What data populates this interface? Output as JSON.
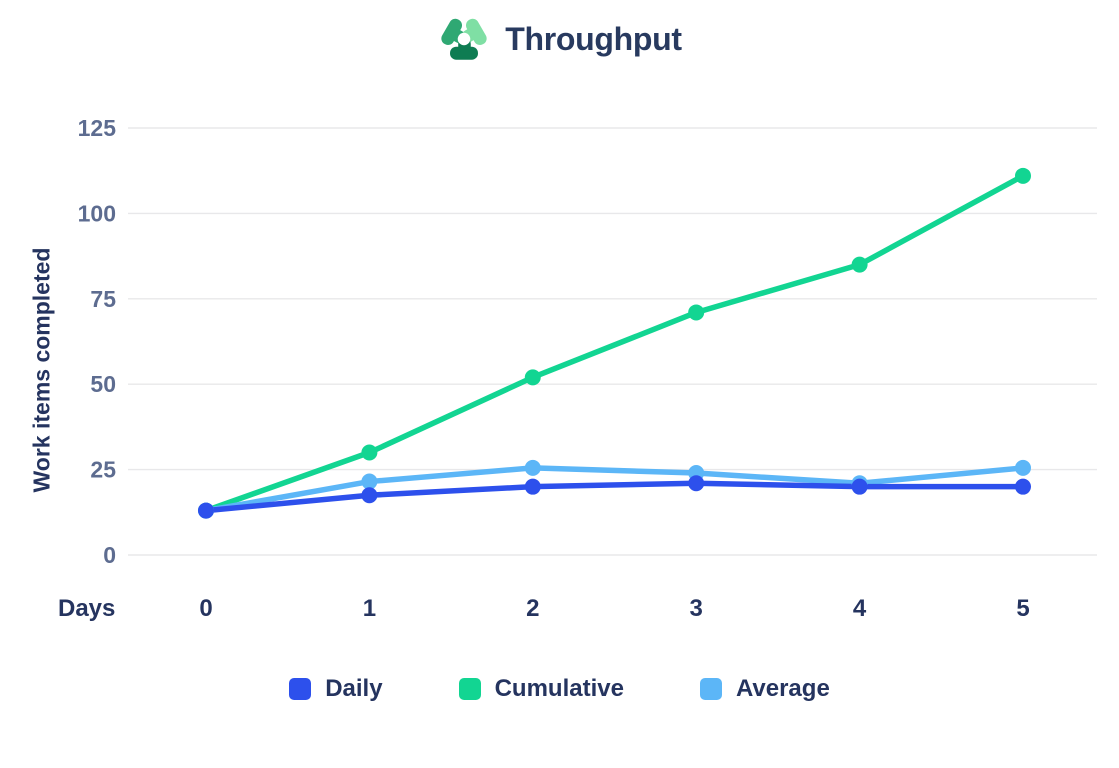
{
  "header": {
    "title": "Throughput",
    "logo": {
      "left_color": "#2fa873",
      "right_color": "#7fdfa4",
      "bottom_color": "#0e7c52"
    }
  },
  "chart_data": {
    "type": "line",
    "title": "Throughput",
    "x_axis_label": "Days",
    "y_axis_label": "Work items completed",
    "categories": [
      "0",
      "1",
      "2",
      "3",
      "4",
      "5"
    ],
    "yticks": [
      0,
      25,
      50,
      75,
      100,
      125
    ],
    "ylim": [
      0,
      125
    ],
    "grid": "horizontal",
    "legend_position": "bottom",
    "series": [
      {
        "key": "daily",
        "name": "Daily",
        "color": "#2d50ec",
        "values": [
          13,
          17.5,
          20,
          21,
          20,
          20
        ]
      },
      {
        "key": "cumulative",
        "name": "Cumulative",
        "color": "#12d592",
        "values": [
          13,
          30,
          52,
          71,
          85,
          111
        ]
      },
      {
        "key": "average",
        "name": "Average",
        "color": "#5cb6f7",
        "values": [
          13,
          21.5,
          25.5,
          24,
          21,
          25.5
        ]
      }
    ]
  }
}
